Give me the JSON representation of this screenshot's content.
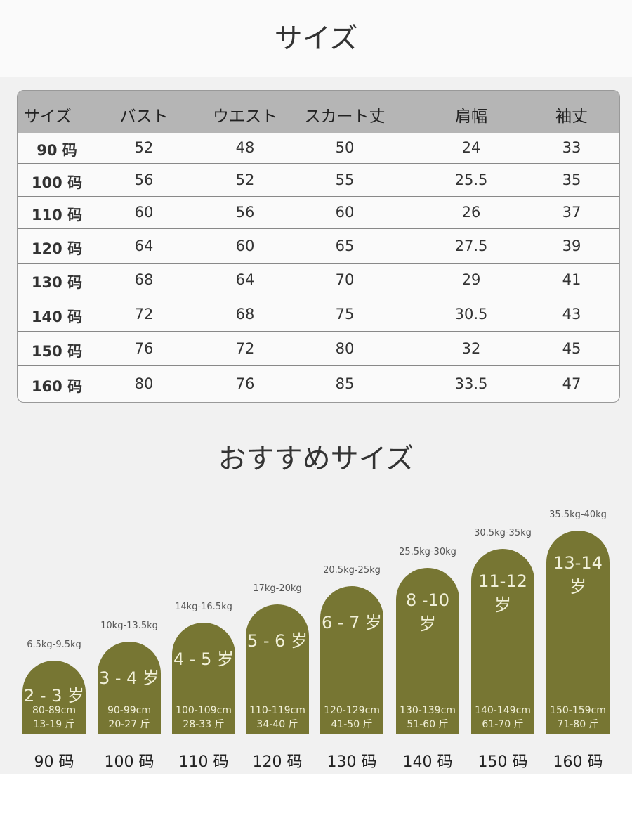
{
  "title": "サイズ",
  "table": {
    "headers": [
      "サイズ",
      "バスト",
      "ウエスト",
      "スカート丈",
      "肩幅",
      "袖丈"
    ],
    "rows": [
      [
        "90 码",
        "52",
        "48",
        "50",
        "24",
        "33"
      ],
      [
        "100 码",
        "56",
        "52",
        "55",
        "25.5",
        "35"
      ],
      [
        "110 码",
        "60",
        "56",
        "60",
        "26",
        "37"
      ],
      [
        "120 码",
        "64",
        "60",
        "65",
        "27.5",
        "39"
      ],
      [
        "130 码",
        "68",
        "64",
        "70",
        "29",
        "41"
      ],
      [
        "140 码",
        "72",
        "68",
        "75",
        "30.5",
        "43"
      ],
      [
        "150 码",
        "76",
        "72",
        "80",
        "32",
        "45"
      ],
      [
        "160 码",
        "80",
        "76",
        "85",
        "33.5",
        "47"
      ]
    ]
  },
  "recommend_title": "おすすめサイズ",
  "bar_color": "#777633",
  "sizes": [
    {
      "weight": "6.5kg-9.5kg",
      "age": "2 - 3 岁",
      "height": "80-89cm",
      "jin": "13-19 斤",
      "size": "90 码"
    },
    {
      "weight": "10kg-13.5kg",
      "age": "3 - 4 岁",
      "height": "90-99cm",
      "jin": "20-27 斤",
      "size": "100 码"
    },
    {
      "weight": "14kg-16.5kg",
      "age": "4 - 5 岁",
      "height": "100-109cm",
      "jin": "28-33 斤",
      "size": "110 码"
    },
    {
      "weight": "17kg-20kg",
      "age": "5 - 6 岁",
      "height": "110-119cm",
      "jin": "34-40 斤",
      "size": "120 码"
    },
    {
      "weight": "20.5kg-25kg",
      "age": "6 - 7 岁",
      "height": "120-129cm",
      "jin": "41-50 斤",
      "size": "130 码"
    },
    {
      "weight": "25.5kg-30kg",
      "age": "8 -10 岁",
      "height": "130-139cm",
      "jin": "51-60 斤",
      "size": "140 码"
    },
    {
      "weight": "30.5kg-35kg",
      "age": "11-12 岁",
      "height": "140-149cm",
      "jin": "61-70 斤",
      "size": "150 码"
    },
    {
      "weight": "35.5kg-40kg",
      "age": "13-14 岁",
      "height": "150-159cm",
      "jin": "71-80 斤",
      "size": "160 码"
    }
  ]
}
